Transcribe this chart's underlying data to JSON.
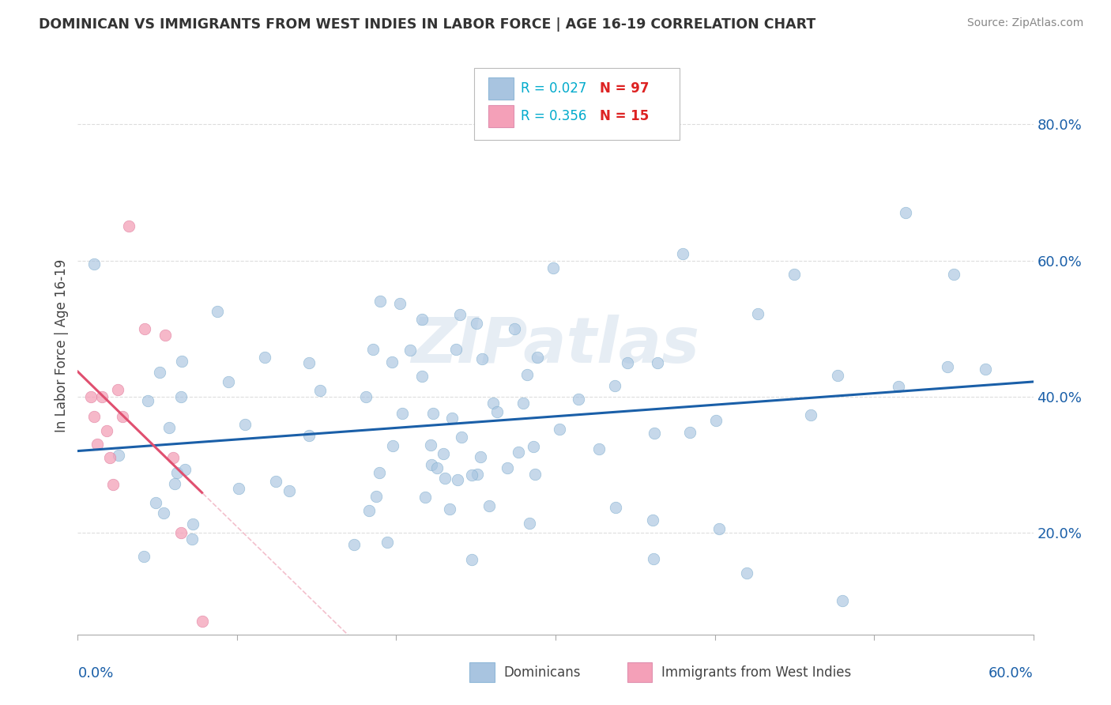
{
  "title": "DOMINICAN VS IMMIGRANTS FROM WEST INDIES IN LABOR FORCE | AGE 16-19 CORRELATION CHART",
  "source": "Source: ZipAtlas.com",
  "ylabel": "In Labor Force | Age 16-19",
  "ylabel_right_ticks": [
    "20.0%",
    "40.0%",
    "60.0%",
    "80.0%"
  ],
  "ylabel_right_values": [
    0.2,
    0.4,
    0.6,
    0.8
  ],
  "xmin": 0.0,
  "xmax": 0.6,
  "ymin": 0.05,
  "ymax": 0.9,
  "blue_color": "#a8c4e0",
  "blue_line_color": "#1a5fa8",
  "pink_color": "#f4a0b8",
  "pink_line_color": "#e05070",
  "pink_dash_color": "#f0b0c0",
  "watermark": "ZIPatlas",
  "grid_color": "#dddddd",
  "spine_color": "#aaaaaa",
  "blue_seed": 12,
  "pink_seed": 7,
  "n_blue": 97,
  "n_pink": 15,
  "dot_size": 110,
  "blue_alpha": 0.65,
  "pink_alpha": 0.75,
  "legend_r1_val": "0.027",
  "legend_n1_val": "97",
  "legend_r2_val": "0.356",
  "legend_n2_val": "15",
  "r_color": "#00aacc",
  "n_color": "#dd2222",
  "text_color": "#444444",
  "source_color": "#888888"
}
